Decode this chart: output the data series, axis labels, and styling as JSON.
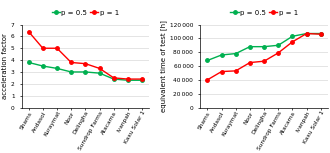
{
  "categories": [
    "Shams",
    "Andasol",
    "Kuraymat",
    "Noor",
    "Delingha",
    "Sundrop Farms",
    "Atacama",
    "Ivanpah",
    "Kaxu Solar 1"
  ],
  "accel_p05": [
    3.8,
    3.5,
    3.3,
    3.0,
    3.0,
    2.9,
    2.4,
    2.3,
    2.3
  ],
  "accel_p1": [
    6.4,
    5.0,
    5.0,
    3.8,
    3.7,
    3.3,
    2.5,
    2.4,
    2.4
  ],
  "equiv_p05": [
    68000,
    76000,
    78000,
    88000,
    88000,
    90000,
    103000,
    107000,
    107000
  ],
  "equiv_p1": [
    40000,
    52000,
    53000,
    65000,
    67000,
    79000,
    95000,
    107000,
    106000
  ],
  "color_p05": "#00b050",
  "color_p1": "#ff0000",
  "ylabel_left": "acceleration factor",
  "ylabel_right": "equivalent time of test [h]",
  "ylim_left": [
    0,
    7
  ],
  "ylim_right": [
    0,
    120000
  ],
  "yticks_left": [
    0,
    1,
    2,
    3,
    4,
    5,
    6,
    7
  ],
  "yticks_right": [
    0,
    20000,
    40000,
    60000,
    80000,
    100000,
    120000
  ],
  "legend_label_p05": "p = 0.5",
  "legend_label_p1": "p = 1",
  "marker": "o",
  "markersize": 2.5,
  "linewidth": 1.0,
  "tick_fontsize": 4.2,
  "label_fontsize": 5.0,
  "legend_fontsize": 5.0
}
